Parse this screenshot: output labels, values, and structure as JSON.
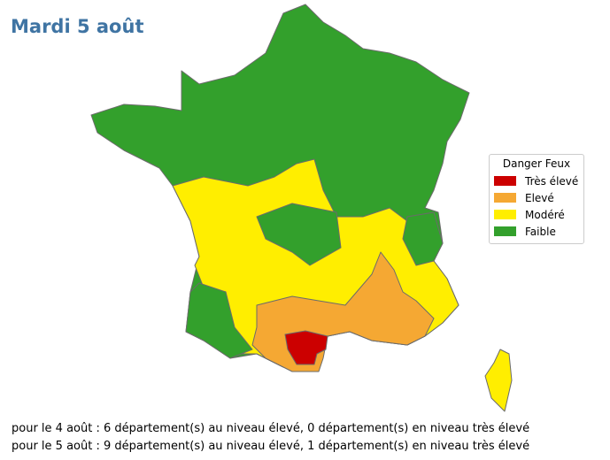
{
  "title": "Mardi 5 août",
  "legend": {
    "title": "Danger Feux",
    "items": [
      {
        "label": "Très élevé",
        "color": "#cc0000"
      },
      {
        "label": "Elevé",
        "color": "#f5a833"
      },
      {
        "label": "Modéré",
        "color": "#ffee00"
      },
      {
        "label": "Faible",
        "color": "#33a02c"
      }
    ]
  },
  "footer": [
    "pour le 4 août : 6 département(s) au niveau élevé, 0 département(s) en niveau très élevé",
    "pour le 5 août : 9 département(s) au niveau élevé, 1 département(s) en niveau très élevé"
  ]
}
